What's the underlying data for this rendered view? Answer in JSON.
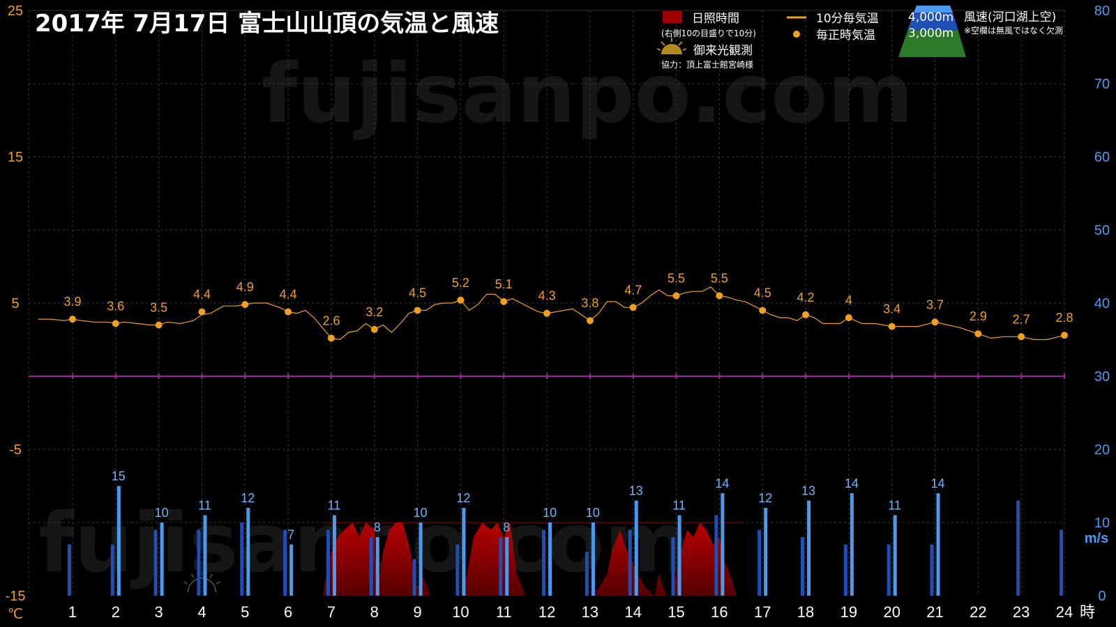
{
  "title": "2017年  7月17日   富士山山頂の気温と風速",
  "watermark": "fujisanpo.com",
  "legend": {
    "sunshine": "日照時間",
    "sunshine_note": "(右側10の目盛りで10分)",
    "goraiko": "御来光観測",
    "credit": "協力：頂上富士館宮崎様",
    "temp10": "10分毎気温",
    "temp_hourly": "毎正時気温",
    "wind_4000": "4,000m",
    "wind_3000": "3,000m",
    "wind_title": "風速(河口湖上空)",
    "wind_note": "※空欄は無風ではなく欠測"
  },
  "colors": {
    "temperature": "#f0a020",
    "wind_3000": "#1f4fb5",
    "wind_4000": "#4a9bf0",
    "sunshine": "#8b0000",
    "zero_line": "#a020a0"
  },
  "chart_data": {
    "type": "line+bar",
    "x_ticks": [
      "1",
      "2",
      "3",
      "4",
      "5",
      "6",
      "7",
      "8",
      "9",
      "10",
      "11",
      "12",
      "13",
      "14",
      "15",
      "16",
      "17",
      "18",
      "19",
      "20",
      "21",
      "22",
      "23",
      "24"
    ],
    "x_unit": "時",
    "x_range": [
      0.2,
      24
    ],
    "left_axis": {
      "unit": "℃",
      "range": [
        -15,
        25
      ],
      "ticks": [
        "25",
        "15",
        "5",
        "-5",
        "-15"
      ]
    },
    "right_axis": {
      "unit": "m/s",
      "range": [
        0,
        80
      ],
      "ticks": [
        "80",
        "70",
        "60",
        "50",
        "40",
        "30",
        "20",
        "10",
        "0"
      ]
    },
    "hourly_temperature": {
      "hours": [
        1,
        2,
        3,
        4,
        5,
        6,
        7,
        8,
        9,
        10,
        11,
        12,
        13,
        14,
        15,
        16,
        17,
        18,
        19,
        20,
        21,
        22,
        23,
        24
      ],
      "values": [
        3.9,
        3.6,
        3.5,
        4.4,
        4.9,
        4.4,
        2.6,
        3.2,
        4.5,
        5.2,
        5.1,
        4.3,
        3.8,
        4.7,
        5.5,
        5.5,
        4.5,
        4.2,
        4.0,
        3.4,
        3.7,
        2.9,
        2.7,
        2.8
      ],
      "labels": [
        "3.9",
        "3.6",
        "3.5",
        "4.4",
        "4.9",
        "4.4",
        "2.6",
        "3.2",
        "4.5",
        "5.2",
        "5.1",
        "4.3",
        "3.8",
        "4.7",
        "5.5",
        "5.5",
        "4.5",
        "4.2",
        "4",
        "3.4",
        "3.7",
        "2.9",
        "2.7",
        "2.8"
      ]
    },
    "temperature_10min": {
      "x": [
        0.2,
        0.5,
        0.8,
        1.0,
        1.2,
        1.5,
        1.8,
        2.0,
        2.2,
        2.5,
        2.8,
        3.0,
        3.2,
        3.5,
        3.8,
        4.0,
        4.2,
        4.5,
        4.8,
        5.0,
        5.2,
        5.5,
        5.8,
        6.0,
        6.2,
        6.4,
        6.6,
        6.8,
        7.0,
        7.2,
        7.4,
        7.6,
        7.8,
        8.0,
        8.2,
        8.4,
        8.6,
        8.8,
        9.0,
        9.2,
        9.4,
        9.6,
        9.8,
        10.0,
        10.2,
        10.4,
        10.6,
        10.8,
        11.0,
        11.2,
        11.4,
        11.6,
        11.8,
        12.0,
        12.2,
        12.4,
        12.6,
        12.8,
        13.0,
        13.2,
        13.4,
        13.6,
        13.8,
        14.0,
        14.2,
        14.4,
        14.6,
        14.8,
        15.0,
        15.2,
        15.4,
        15.6,
        15.8,
        16.0,
        16.2,
        16.4,
        16.6,
        16.8,
        17.0,
        17.2,
        17.4,
        17.6,
        17.8,
        18.0,
        18.2,
        18.4,
        18.6,
        18.8,
        19.0,
        19.3,
        19.6,
        20.0,
        20.3,
        20.6,
        21.0,
        21.3,
        21.6,
        22.0,
        22.3,
        22.6,
        23.0,
        23.3,
        23.6,
        24.0
      ],
      "values": [
        3.9,
        3.9,
        3.8,
        3.9,
        3.8,
        3.7,
        3.7,
        3.6,
        3.7,
        3.6,
        3.5,
        3.5,
        3.7,
        3.6,
        3.8,
        4.2,
        4.3,
        4.8,
        4.8,
        4.9,
        5.0,
        5.0,
        4.7,
        4.4,
        4.3,
        4.5,
        4.0,
        3.3,
        2.6,
        2.5,
        3.0,
        3.1,
        3.6,
        3.2,
        3.5,
        3.0,
        3.6,
        4.3,
        4.5,
        4.5,
        4.9,
        5.0,
        5.0,
        5.2,
        4.5,
        4.9,
        5.6,
        5.6,
        5.1,
        5.3,
        5.0,
        4.7,
        4.4,
        4.3,
        4.4,
        4.5,
        4.6,
        4.2,
        3.8,
        4.3,
        5.1,
        5.1,
        4.7,
        4.7,
        5.0,
        5.5,
        5.9,
        5.5,
        5.5,
        5.7,
        5.8,
        5.8,
        6.1,
        5.5,
        5.4,
        5.2,
        5.1,
        4.8,
        4.5,
        4.2,
        4.0,
        4.0,
        3.8,
        4.2,
        4.0,
        3.6,
        3.6,
        3.6,
        4.0,
        3.6,
        3.6,
        3.4,
        3.4,
        3.4,
        3.7,
        3.5,
        3.3,
        2.9,
        2.6,
        2.7,
        2.7,
        2.5,
        2.5,
        2.8
      ]
    },
    "wind_4000m": {
      "hours": [
        2,
        3,
        4,
        5,
        6,
        7,
        8,
        9,
        10,
        11,
        12,
        13,
        14,
        15,
        16,
        17,
        18,
        19,
        20,
        21
      ],
      "values": [
        15,
        10,
        11,
        12,
        7,
        11,
        8,
        10,
        12,
        8,
        10,
        10,
        13,
        11,
        14,
        12,
        13,
        14,
        11,
        14
      ],
      "labels": [
        "15",
        "10",
        "11",
        "12",
        "7",
        "11",
        "8",
        "10",
        "12",
        "8",
        "10",
        "10",
        "13",
        "11",
        "14",
        "12",
        "13",
        "14",
        "11",
        "14"
      ]
    },
    "wind_3000m": {
      "hours": [
        1,
        2,
        3,
        4,
        5,
        6,
        7,
        8,
        9,
        10,
        11,
        12,
        13,
        14,
        15,
        16,
        17,
        18,
        19,
        20,
        21,
        23,
        24
      ],
      "values": [
        7,
        7,
        9,
        9,
        10,
        9,
        9,
        8,
        5,
        7,
        8,
        9,
        6,
        9,
        8,
        11,
        9,
        8,
        7,
        7,
        7,
        13,
        9
      ]
    },
    "sunshine_minutes": {
      "x": [
        6.8,
        6.95,
        7.15,
        7.3,
        7.5,
        7.65,
        7.8,
        8.0,
        8.05,
        8.2,
        8.35,
        8.5,
        8.65,
        8.8,
        9.0,
        9.1,
        9.3,
        9.5,
        9.75,
        10.0,
        10.15,
        10.3,
        10.5,
        10.7,
        10.85,
        11.0,
        11.15,
        11.3,
        11.5,
        12.5,
        12.8,
        13.0,
        13.2,
        13.4,
        13.5,
        13.7,
        13.8,
        13.95,
        14.1,
        14.3,
        14.5,
        14.6,
        14.7,
        14.8,
        14.9,
        15.1,
        15.25,
        15.4,
        15.55,
        15.7,
        15.85,
        16.0,
        16.1,
        16.3,
        16.4,
        16.5
      ],
      "values": [
        0,
        5,
        8,
        9,
        10,
        8,
        10,
        9,
        0,
        6,
        9,
        10,
        10,
        7,
        1,
        3,
        0,
        0,
        0,
        0,
        3,
        8,
        10,
        9,
        10,
        8,
        10,
        3,
        0,
        0,
        0,
        0,
        1,
        3,
        6,
        9,
        7,
        5,
        3,
        1,
        0,
        3,
        1,
        0,
        0,
        6,
        9,
        8,
        10,
        9,
        7,
        8,
        5,
        2,
        0,
        0
      ]
    },
    "goraiko_hour": 4,
    "zero_line_celsius": 0
  }
}
